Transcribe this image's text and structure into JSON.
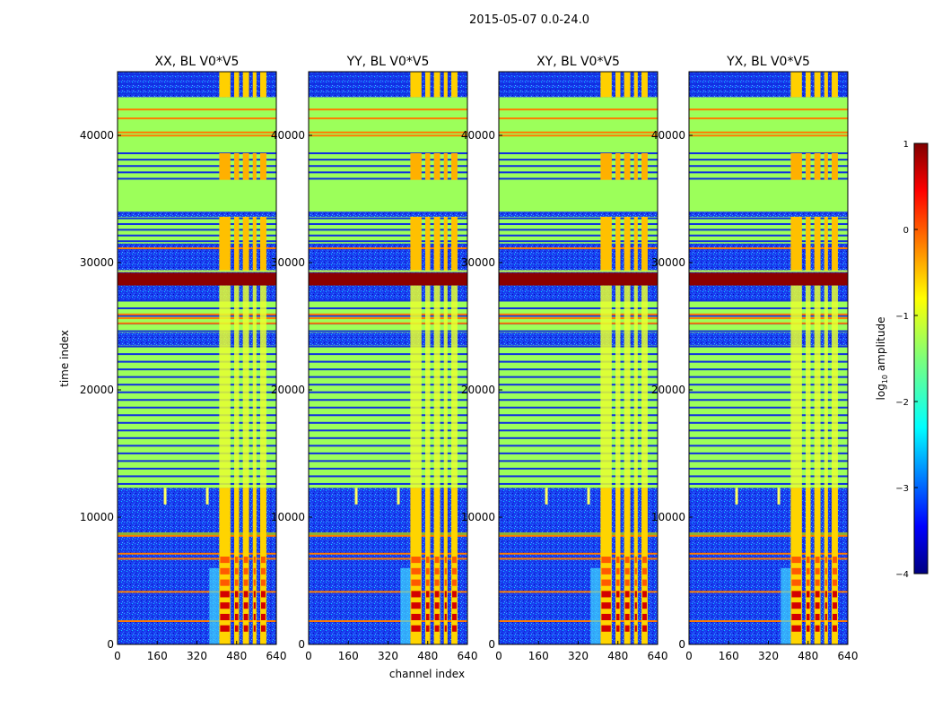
{
  "suptitle": "2015-05-07 0.0-24.0",
  "chart_data": [
    {
      "type": "heatmap",
      "title": "XX, BL V0*V5",
      "xlabel": "channel index",
      "ylabel": "time index",
      "xlim": [
        0,
        640
      ],
      "ylim": [
        0,
        45000
      ],
      "xticks": [
        "0",
        "160",
        "320",
        "480",
        "640"
      ],
      "yticks": [
        "0",
        "10000",
        "20000",
        "30000",
        "40000"
      ],
      "ytick_values": [
        0,
        10000,
        20000,
        30000,
        40000
      ]
    },
    {
      "type": "heatmap",
      "title": "YY, BL V0*V5",
      "xlim": [
        0,
        640
      ],
      "ylim": [
        0,
        45000
      ],
      "xticks": [
        "0",
        "160",
        "320",
        "480",
        "640"
      ],
      "yticks": [
        "0",
        "10000",
        "20000",
        "30000",
        "40000"
      ],
      "ytick_values": [
        0,
        10000,
        20000,
        30000,
        40000
      ]
    },
    {
      "type": "heatmap",
      "title": "XY, BL V0*V5",
      "xlim": [
        0,
        640
      ],
      "ylim": [
        0,
        45000
      ],
      "xticks": [
        "0",
        "160",
        "320",
        "480",
        "640"
      ],
      "yticks": [
        "0",
        "10000",
        "20000",
        "30000",
        "40000"
      ],
      "ytick_values": [
        0,
        10000,
        20000,
        30000,
        40000
      ]
    },
    {
      "type": "heatmap",
      "title": "YX, BL V0*V5",
      "xlim": [
        0,
        640
      ],
      "ylim": [
        0,
        45000
      ],
      "xticks": [
        "0",
        "160",
        "320",
        "480",
        "640"
      ],
      "yticks": [
        "0",
        "10000",
        "20000",
        "30000",
        "40000"
      ],
      "ytick_values": [
        0,
        10000,
        20000,
        30000,
        40000
      ]
    }
  ],
  "colorbar": {
    "label": "log",
    "label_sub": "10",
    "label_rest": " amplitude",
    "range": [
      -4,
      1
    ],
    "ticks": [
      "1",
      "0",
      "−1",
      "−2",
      "−3",
      "−4"
    ],
    "tick_values": [
      1,
      0,
      -1,
      -2,
      -3,
      -4
    ]
  },
  "xlabel_shared": "channel index",
  "ylabel_shared": "time index"
}
